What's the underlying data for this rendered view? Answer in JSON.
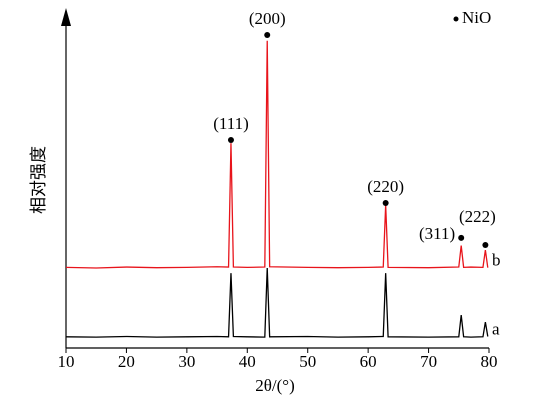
{
  "chart_data": {
    "type": "line",
    "x_label": "2θ/(°)",
    "y_label": "相对强度",
    "x": [
      10,
      15,
      20,
      25,
      30,
      35,
      36.9,
      37.3,
      37.7,
      40,
      42.9,
      43.3,
      43.7,
      50,
      55,
      60,
      62.5,
      62.9,
      63.3,
      70,
      75.0,
      75.4,
      75.8,
      77,
      79.0,
      79.4,
      79.8
    ],
    "series": [
      {
        "name": "a",
        "color": "#000000",
        "values": [
          3.5,
          3.4,
          3.6,
          3.4,
          3.5,
          3.6,
          3.5,
          23.4,
          3.6,
          3.5,
          3.4,
          25,
          3.5,
          3.6,
          3.4,
          3.5,
          3.6,
          23.4,
          3.5,
          3.4,
          3.5,
          10.3,
          3.5,
          3.4,
          3.5,
          8.1,
          3.6
        ]
      },
      {
        "name": "b",
        "color": "#e8141b",
        "values": [
          25.2,
          25,
          25.3,
          25.1,
          25.2,
          25.4,
          25.3,
          64,
          25.3,
          25.2,
          25.3,
          96,
          25.4,
          25.2,
          25.1,
          25.2,
          25.3,
          44.7,
          25.2,
          25.1,
          25.3,
          32,
          25.2,
          25.3,
          25.2,
          30.6,
          25.1
        ]
      }
    ],
    "xlim": [
      10,
      80
    ],
    "xticks": [
      10,
      20,
      30,
      40,
      50,
      60,
      70,
      80
    ],
    "ylim": [
      0,
      100
    ],
    "marker_label": "NiO",
    "annotations": [
      {
        "text": "(111)",
        "x": 37.3,
        "y": 65
      },
      {
        "text": "(200)",
        "x": 43.3,
        "y": 97.8
      },
      {
        "text": "(220)",
        "x": 62.9,
        "y": 45.3
      },
      {
        "text": "(311)",
        "x": 75.4,
        "y": 34.4
      },
      {
        "text": "(222)",
        "x": 79.4,
        "y": 32.2
      }
    ]
  }
}
